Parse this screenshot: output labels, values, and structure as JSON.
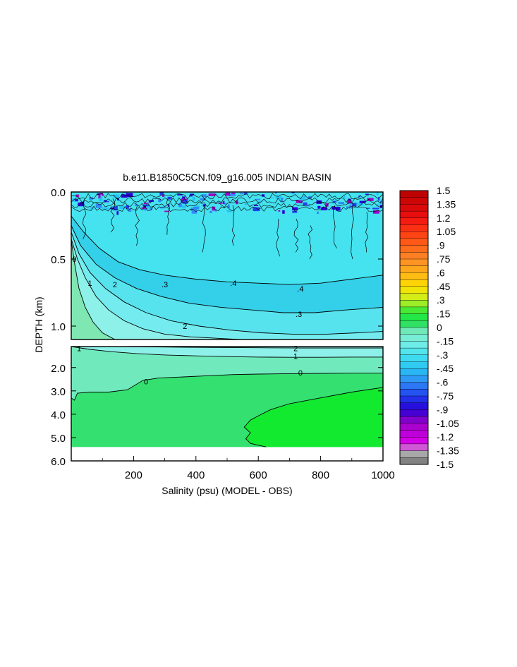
{
  "chart_data": {
    "type": "heatmap",
    "title": "b.e11.B1850C5CN.f09_g16.005 INDIAN BASIN",
    "xlabel": "Salinity (psu) (MODEL - OBS)",
    "ylabel": "DEPTH (km)",
    "xlim": [
      0,
      1000
    ],
    "x_ticks": [
      {
        "value": 200,
        "label": "200"
      },
      {
        "value": 400,
        "label": "400"
      },
      {
        "value": 600,
        "label": "600"
      },
      {
        "value": 800,
        "label": "800"
      },
      {
        "value": 1000,
        "label": "1000"
      }
    ],
    "upper_panel": {
      "ylim": [
        0.0,
        1.1
      ],
      "y_ticks": [
        {
          "value": 0.0,
          "label": "0.0"
        },
        {
          "value": 0.5,
          "label": "0.5"
        },
        {
          "value": 1.0,
          "label": "1.0"
        }
      ],
      "contours": [
        {
          "level": -0.4,
          "label": ".4",
          "color": "#34cfe9",
          "label_x": [
            520,
            735
          ],
          "label_y": [
            0.68,
            0.72
          ],
          "x": [
            0,
            40,
            90,
            150,
            220,
            300,
            400,
            500,
            600,
            700,
            800,
            900,
            1000
          ],
          "y": [
            0.18,
            0.3,
            0.42,
            0.52,
            0.58,
            0.62,
            0.65,
            0.67,
            0.68,
            0.69,
            0.68,
            0.65,
            0.62
          ]
        },
        {
          "level": -0.3,
          "label": ".3",
          "color": "#57e3ee",
          "label_x": [
            300,
            730
          ],
          "label_y": [
            0.69,
            0.91
          ],
          "x": [
            0,
            30,
            80,
            140,
            210,
            290,
            380,
            480,
            580,
            680,
            780,
            880,
            1000
          ],
          "y": [
            0.25,
            0.4,
            0.54,
            0.64,
            0.72,
            0.78,
            0.83,
            0.86,
            0.88,
            0.9,
            0.9,
            0.88,
            0.86
          ]
        },
        {
          "level": -0.2,
          "label": "2",
          "color": "#74ecef",
          "label_x": [
            140,
            365
          ],
          "label_y": [
            0.69,
            1.0
          ],
          "x": [
            0,
            25,
            60,
            110,
            170,
            240,
            320,
            410,
            510,
            610,
            710,
            820,
            920,
            1000
          ],
          "y": [
            0.3,
            0.46,
            0.6,
            0.72,
            0.82,
            0.9,
            0.96,
            1.0,
            1.03,
            1.05,
            1.06,
            1.06,
            1.05,
            1.04
          ]
        },
        {
          "level": -0.1,
          "label": "1",
          "color": "#8ef1e9",
          "label_x": [
            60
          ],
          "label_y": [
            0.68
          ],
          "x": [
            0,
            20,
            45,
            80,
            120,
            170,
            230,
            300,
            380,
            460,
            540
          ],
          "y": [
            0.35,
            0.5,
            0.64,
            0.78,
            0.88,
            0.96,
            1.02,
            1.06,
            1.08,
            1.09,
            1.1
          ]
        },
        {
          "level": 0.0,
          "label": "0",
          "color": "#7ee7b2",
          "label_x": [
            10
          ],
          "label_y": [
            0.5
          ],
          "x": [
            0,
            12,
            25,
            45,
            70,
            100,
            140
          ],
          "y": [
            0.36,
            0.55,
            0.72,
            0.86,
            0.97,
            1.05,
            1.1
          ]
        }
      ]
    },
    "lower_panel": {
      "ylim": [
        1.1,
        6.0
      ],
      "y_ticks": [
        {
          "value": 2.0,
          "label": "2.0"
        },
        {
          "value": 3.0,
          "label": "3.0"
        },
        {
          "value": 4.0,
          "label": "4.0"
        },
        {
          "value": 5.0,
          "label": "5.0"
        },
        {
          "value": 6.0,
          "label": "6.0"
        }
      ],
      "data_bottom": 5.4,
      "contours": [
        {
          "level": -0.2,
          "label": "2",
          "label_x": [
            720
          ],
          "label_y": [
            1.17
          ],
          "x": [
            0,
            150,
            300,
            450,
            600,
            750,
            900,
            1000
          ],
          "y": [
            1.1,
            1.1,
            1.12,
            1.14,
            1.15,
            1.16,
            1.16,
            1.16
          ]
        },
        {
          "level": -0.1,
          "label": "1",
          "label_x": [
            25,
            720
          ],
          "label_y": [
            1.17,
            1.51
          ],
          "x": [
            0,
            60,
            130,
            210,
            300,
            400,
            500,
            600,
            700,
            800,
            900,
            1000
          ],
          "y": [
            1.1,
            1.22,
            1.32,
            1.4,
            1.46,
            1.5,
            1.53,
            1.55,
            1.56,
            1.56,
            1.55,
            1.55
          ]
        },
        {
          "level": 0.0,
          "label": "0",
          "label_x": [
            240,
            735
          ],
          "label_y": [
            2.59,
            2.22
          ],
          "x": [
            0,
            10,
            20,
            60,
            120,
            180,
            230,
            280,
            360,
            440,
            520,
            600,
            700,
            800,
            900,
            1000
          ],
          "y": [
            3.3,
            3.4,
            3.1,
            3.05,
            3.05,
            2.95,
            2.55,
            2.45,
            2.4,
            2.35,
            2.3,
            2.28,
            2.26,
            2.25,
            2.24,
            2.24
          ]
        },
        {
          "level": 0.1,
          "label": "",
          "label_x": [],
          "label_y": [],
          "x": [
            625,
            600,
            575,
            560,
            575,
            555,
            575,
            610,
            640,
            700,
            800,
            900,
            1000
          ],
          "y": [
            5.4,
            5.33,
            5.25,
            5.05,
            4.8,
            4.55,
            4.25,
            4.0,
            3.8,
            3.55,
            3.3,
            3.05,
            2.85
          ]
        }
      ]
    },
    "colorbar": {
      "min": -1.5,
      "max": 1.5,
      "step": 0.075,
      "labels": [
        "1.5",
        "1.35",
        "1.2",
        "1.05",
        ".9",
        ".75",
        ".6",
        ".45",
        ".3",
        ".15",
        "0",
        "-.15",
        "-.3",
        "-.45",
        "-.6",
        "-.75",
        "-.9",
        "-1.05",
        "-1.2",
        "-1.35",
        "-1.5"
      ],
      "stops": [
        {
          "v": -1.5,
          "c": "#6f6f6f"
        },
        {
          "v": -1.35,
          "c": "#bbbbbb"
        },
        {
          "v": -1.28,
          "c": "#e000ee"
        },
        {
          "v": -1.05,
          "c": "#9e00c8"
        },
        {
          "v": -0.9,
          "c": "#2a00d8"
        },
        {
          "v": -0.75,
          "c": "#1f40f0"
        },
        {
          "v": -0.6,
          "c": "#2f8af5"
        },
        {
          "v": -0.45,
          "c": "#28c4f2"
        },
        {
          "v": -0.3,
          "c": "#45e2ef"
        },
        {
          "v": -0.15,
          "c": "#7cefe4"
        },
        {
          "v": -0.03,
          "c": "#6ee9b4"
        },
        {
          "v": 0.0,
          "c": "#34e070"
        },
        {
          "v": 0.15,
          "c": "#1ee83a"
        },
        {
          "v": 0.3,
          "c": "#c6f020"
        },
        {
          "v": 0.45,
          "c": "#ffe000"
        },
        {
          "v": 0.6,
          "c": "#ffb018"
        },
        {
          "v": 0.75,
          "c": "#ff8a28"
        },
        {
          "v": 0.9,
          "c": "#ff6218"
        },
        {
          "v": 1.05,
          "c": "#ff3a12"
        },
        {
          "v": 1.2,
          "c": "#f01010"
        },
        {
          "v": 1.5,
          "c": "#b80000"
        }
      ]
    }
  }
}
